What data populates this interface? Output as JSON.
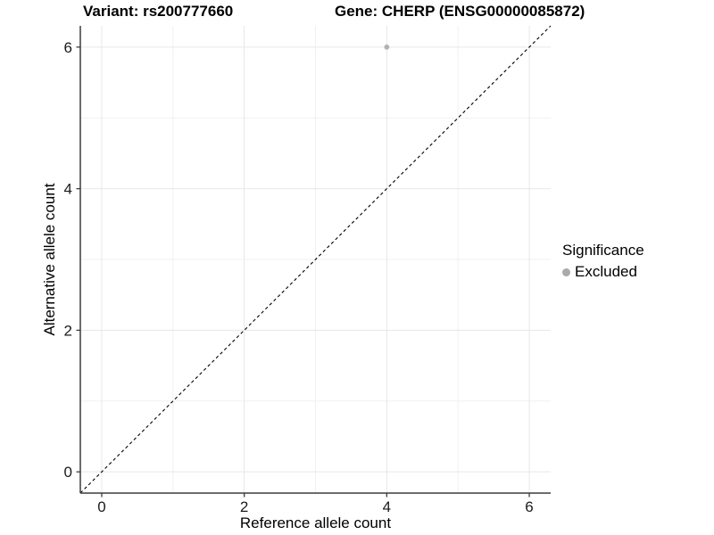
{
  "header": {
    "variant_title": "Variant: rs200777660",
    "gene_title": "Gene: CHERP (ENSG00000085872)"
  },
  "chart_data": {
    "type": "scatter",
    "title": "Variant: rs200777660 | Gene: CHERP (ENSG00000085872)",
    "xlabel": "Reference allele count",
    "ylabel": "Alternative allele count",
    "xlim": [
      -0.3,
      6.3
    ],
    "ylim": [
      -0.3,
      6.3
    ],
    "x_ticks": [
      0,
      2,
      4,
      6
    ],
    "y_ticks": [
      0,
      2,
      4,
      6
    ],
    "x_minor_gridlines": [
      1,
      3,
      5
    ],
    "y_minor_gridlines": [
      1,
      3,
      5
    ],
    "grid": true,
    "identity_line": {
      "style": "dashed",
      "from": [
        -0.3,
        -0.3
      ],
      "to": [
        6.3,
        6.3
      ],
      "color": "#000000"
    },
    "series": [
      {
        "name": "Excluded",
        "color": "#b2b2b2",
        "points": [
          {
            "x": 4,
            "y": 6
          }
        ]
      }
    ],
    "legend": {
      "title": "Significance",
      "position": "right",
      "items": [
        {
          "label": "Excluded",
          "color": "#aaaaaa"
        }
      ]
    },
    "colors": {
      "background": "#ffffff",
      "major_gridline": "#e7e7e7",
      "minor_gridline": "#f1f1f1",
      "axis_line": "#3c3c3c",
      "tick_label": "#1a1a1a"
    }
  }
}
